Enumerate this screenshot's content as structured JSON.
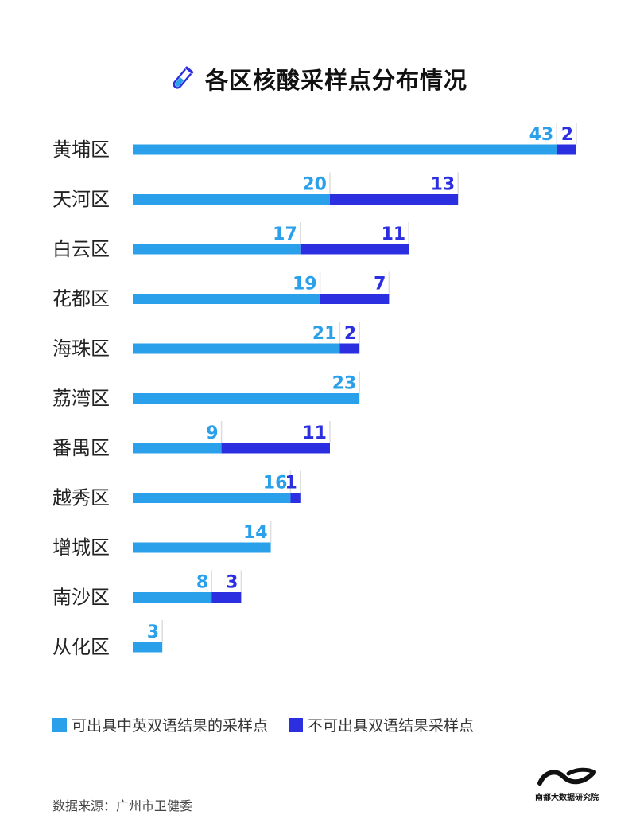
{
  "title": "各区核酸采样点分布情况",
  "icon": "test-tube-icon",
  "colors": {
    "series_a": "#2aa0ea",
    "series_b": "#2b2fe0"
  },
  "legend": [
    {
      "label": "可出具中英双语结果的采样点",
      "color": "#2aa0ea"
    },
    {
      "label": "不可出具双语结果采样点",
      "color": "#2b2fe0"
    }
  ],
  "source": "数据来源：广州市卫健委",
  "logo_text": "南都大数据研究院",
  "chart_data": {
    "type": "bar",
    "orientation": "horizontal",
    "stacked": true,
    "title": "各区核酸采样点分布情况",
    "categories": [
      "黄埔区",
      "天河区",
      "白云区",
      "花都区",
      "海珠区",
      "荔湾区",
      "番禺区",
      "越秀区",
      "增城区",
      "南沙区",
      "从化区"
    ],
    "series": [
      {
        "name": "可出具中英双语结果的采样点",
        "values": [
          43,
          20,
          17,
          19,
          21,
          23,
          9,
          16,
          14,
          8,
          3
        ]
      },
      {
        "name": "不可出具双语结果采样点",
        "values": [
          2,
          13,
          11,
          7,
          2,
          0,
          11,
          1,
          0,
          3,
          0
        ]
      }
    ],
    "xlim": [
      0,
      45
    ],
    "grid": false,
    "legend_position": "bottom"
  }
}
